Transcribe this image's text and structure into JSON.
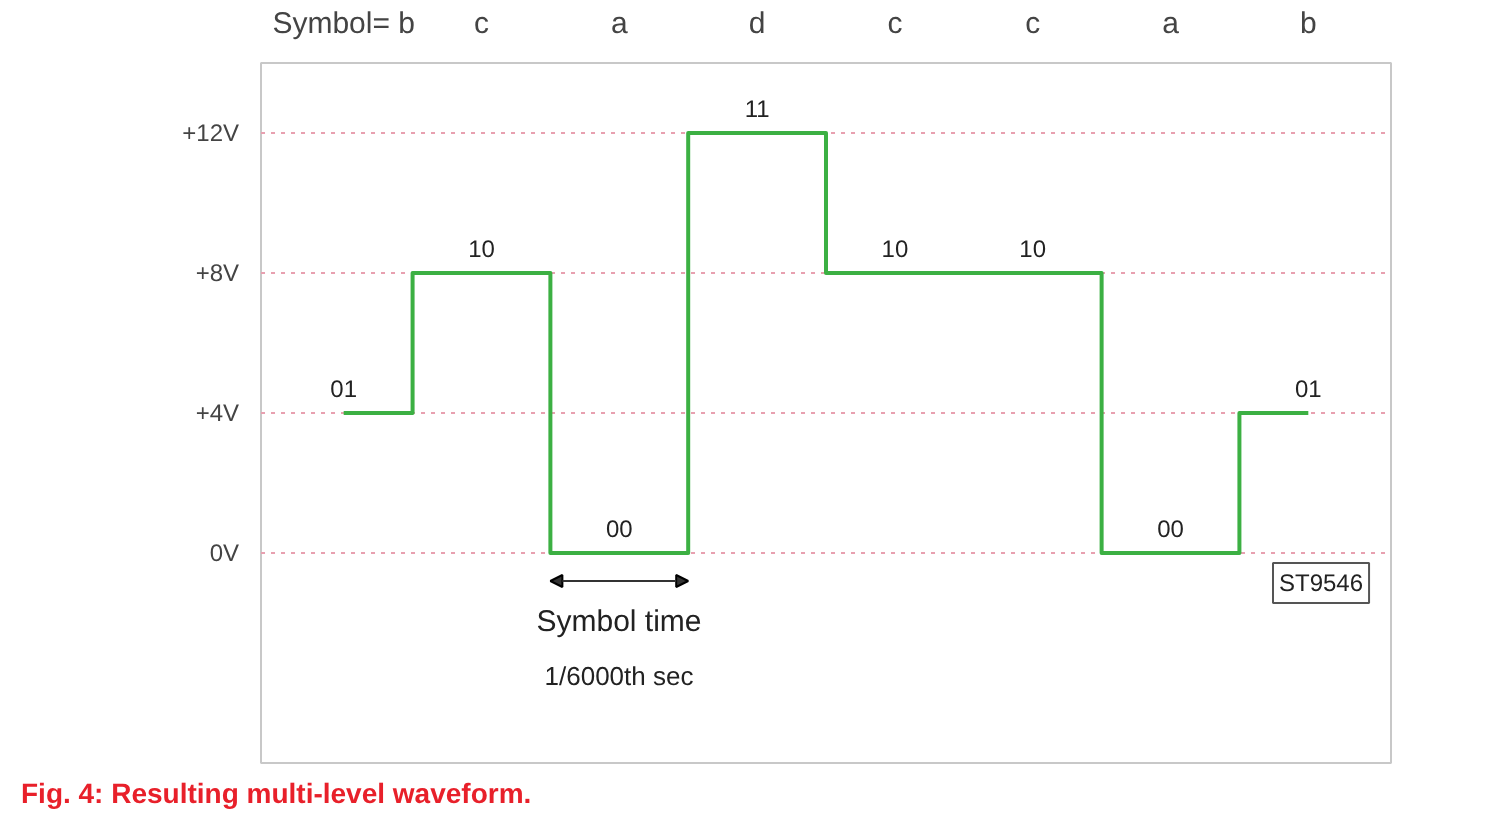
{
  "chart_data": {
    "type": "step",
    "title": "Fig. 4: Resulting multi-level waveform.",
    "categories": [
      "Symbol= b",
      "c",
      "a",
      "d",
      "c",
      "c",
      "a",
      "b"
    ],
    "series": [
      {
        "color": "#3cb043",
        "values": [
          4,
          8,
          0,
          12,
          8,
          8,
          0,
          4
        ]
      }
    ],
    "ylim": [
      -6,
      14
    ],
    "yticks": [
      {
        "value": 0,
        "label": "0V"
      },
      {
        "value": 4,
        "label": "+4V"
      },
      {
        "value": 8,
        "label": "+8V"
      },
      {
        "value": 12,
        "label": "+12V"
      }
    ],
    "grid": "y",
    "annotations": [
      "Symbol time",
      "1/6000th sec",
      "ST9546",
      "01",
      "10",
      "00",
      "11",
      "10",
      "10",
      "00",
      "01"
    ]
  }
}
